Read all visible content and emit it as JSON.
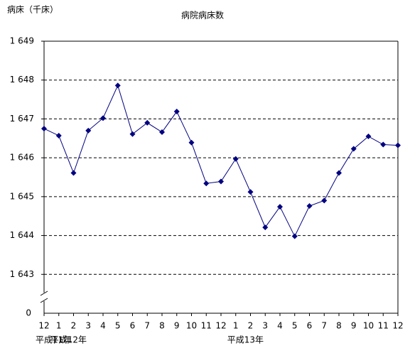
{
  "chart_data": {
    "type": "line",
    "title": "病院病床数",
    "ylabel": "病床（千床）",
    "categories": [
      "12",
      "1",
      "2",
      "3",
      "4",
      "5",
      "6",
      "7",
      "8",
      "9",
      "10",
      "11",
      "12",
      "1",
      "2",
      "3",
      "4",
      "5",
      "6",
      "7",
      "8",
      "9",
      "10",
      "11",
      "12"
    ],
    "x_groups": [
      {
        "label": "平成11年",
        "start": 0
      },
      {
        "label": "平成12年",
        "start": 1
      },
      {
        "label": "平成13年",
        "start": 13
      }
    ],
    "series": [
      {
        "name": "病院病床数",
        "color": "#000080",
        "values": [
          1646.75,
          1646.57,
          1645.61,
          1646.7,
          1647.02,
          1647.86,
          1646.61,
          1646.9,
          1646.66,
          1647.19,
          1646.39,
          1645.34,
          1645.39,
          1645.97,
          1645.12,
          1644.21,
          1644.74,
          1643.98,
          1644.76,
          1644.9,
          1645.61,
          1646.23,
          1646.55,
          1646.34,
          1646.32
        ]
      }
    ],
    "ylim": [
      1642,
      1649
    ],
    "yticks": [
      {
        "value": 1643,
        "label": "1 643"
      },
      {
        "value": 1644,
        "label": "1 644"
      },
      {
        "value": 1645,
        "label": "1 645"
      },
      {
        "value": 1646,
        "label": "1 646"
      },
      {
        "value": 1647,
        "label": "1 647"
      },
      {
        "value": 1648,
        "label": "1 648"
      },
      {
        "value": 1649,
        "label": "1 649"
      }
    ],
    "y_break": true,
    "y_origin_label": "0",
    "grid": true
  }
}
